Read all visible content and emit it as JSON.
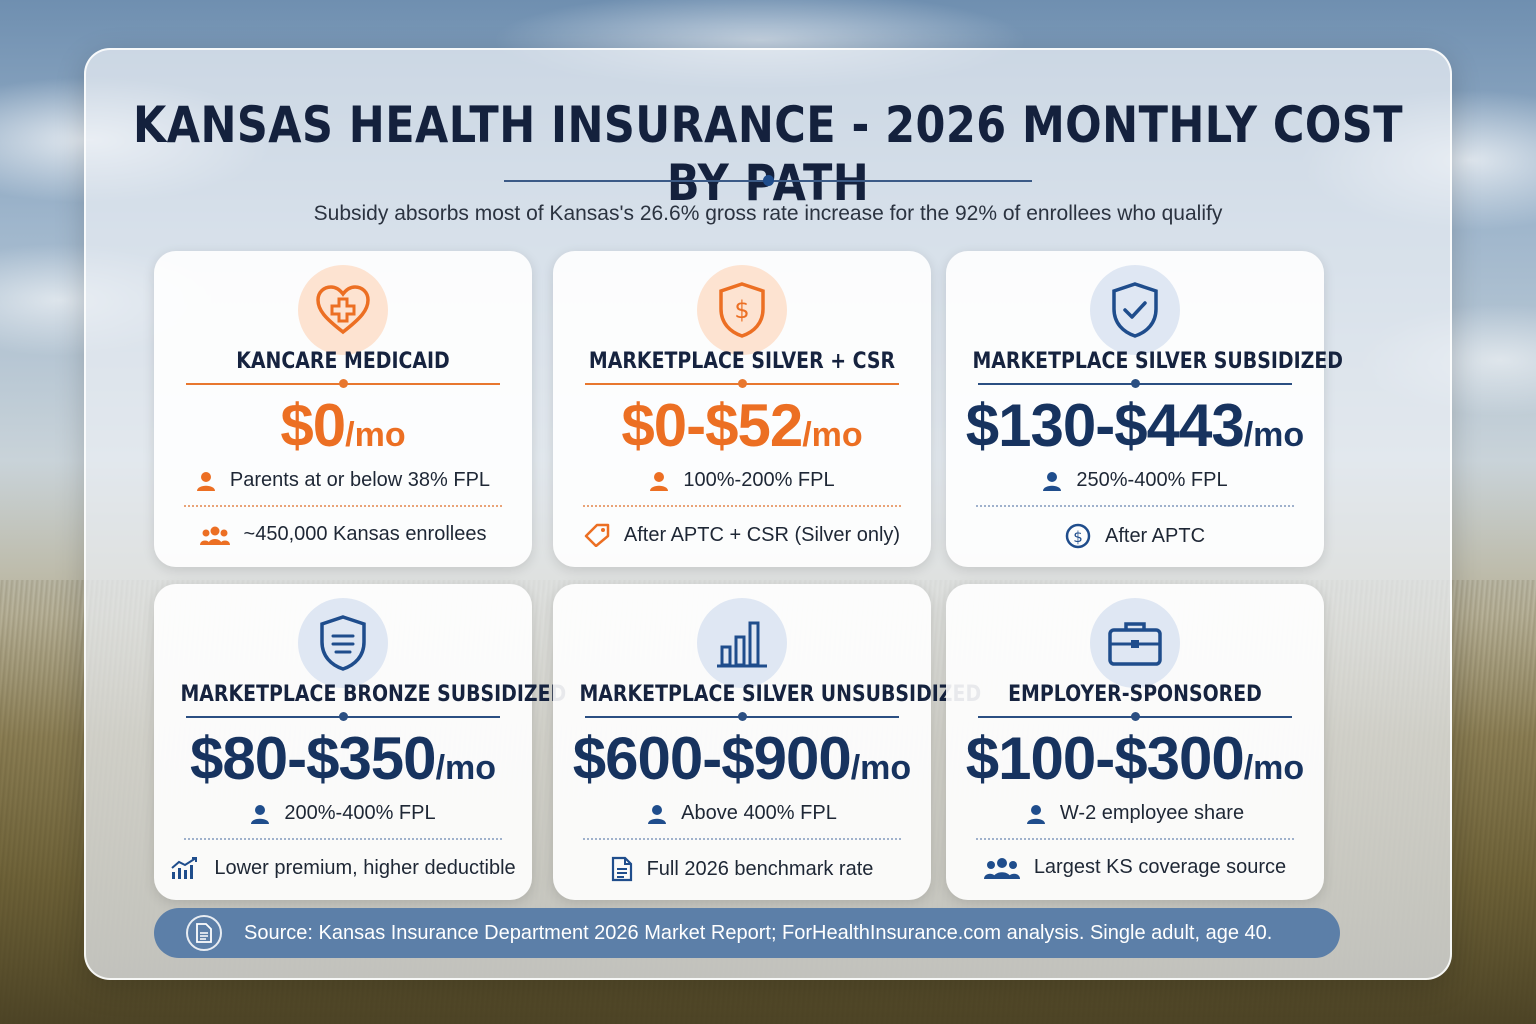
{
  "title": "KANSAS HEALTH INSURANCE - 2026 MONTHLY COST BY PATH",
  "subtitle": "Subsidy absorbs most of Kansas's 26.6% gross rate increase for the 92% of enrollees who qualify",
  "colors": {
    "orange": "#ec6f23",
    "navy": "#17335f",
    "source_bar": "#5c7fa8"
  },
  "cards": [
    {
      "name": "KANCARE MEDICAID",
      "price": "$0",
      "per": "/mo",
      "detail": "Parents at or below 38% FPL",
      "note": "~450,000 Kansas enrollees",
      "icon": "heart-cross-icon",
      "note_icon": "people-icon",
      "theme": "orange"
    },
    {
      "name": "MARKETPLACE SILVER + CSR",
      "price": "$0-$52",
      "per": "/mo",
      "detail": "100%-200% FPL",
      "note": "After APTC + CSR (Silver only)",
      "icon": "shield-dollar-icon",
      "note_icon": "tag-icon",
      "theme": "orange"
    },
    {
      "name": "MARKETPLACE SILVER SUBSIDIZED",
      "price": "$130-$443",
      "per": "/mo",
      "detail": "250%-400% FPL",
      "note": "After APTC",
      "icon": "shield-check-icon",
      "note_icon": "dollar-circle-icon",
      "theme": "navy"
    },
    {
      "name": "MARKETPLACE BRONZE SUBSIDIZED",
      "price": "$80-$350",
      "per": "/mo",
      "detail": "200%-400% FPL",
      "note": "Lower premium, higher deductible",
      "icon": "shield-lines-icon",
      "note_icon": "trend-chart-icon",
      "theme": "navy"
    },
    {
      "name": "MARKETPLACE SILVER UNSUBSIDIZED",
      "price": "$600-$900",
      "per": "/mo",
      "detail": "Above 400% FPL",
      "note": "Full 2026 benchmark rate",
      "icon": "bar-chart-icon",
      "note_icon": "document-icon",
      "theme": "navy"
    },
    {
      "name": "EMPLOYER-SPONSORED",
      "price": "$100-$300",
      "per": "/mo",
      "detail": "W-2 employee share",
      "note": "Largest KS coverage source",
      "icon": "briefcase-icon",
      "note_icon": "people-icon",
      "theme": "navy"
    }
  ],
  "source": "Source: Kansas Insurance Department 2026 Market Report; ForHealthInsurance.com analysis. Single adult, age 40."
}
